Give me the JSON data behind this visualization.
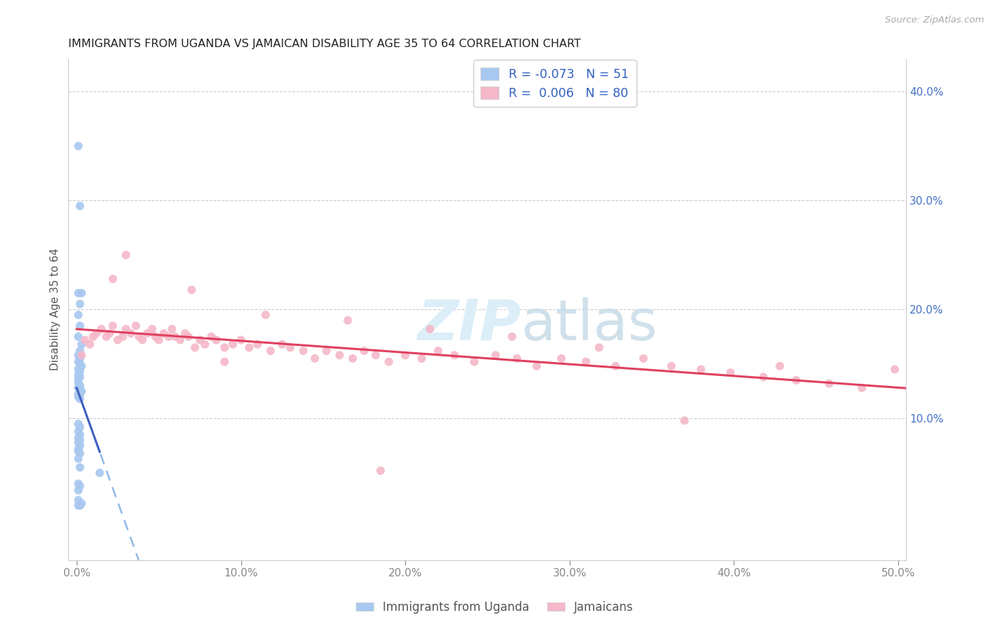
{
  "title": "IMMIGRANTS FROM UGANDA VS JAMAICAN DISABILITY AGE 35 TO 64 CORRELATION CHART",
  "source": "Source: ZipAtlas.com",
  "ylabel": "Disability Age 35 to 64",
  "xlim": [
    -0.005,
    0.505
  ],
  "ylim": [
    -0.03,
    0.43
  ],
  "xtick_vals": [
    0.0,
    0.1,
    0.2,
    0.3,
    0.4,
    0.5
  ],
  "xtick_labels": [
    "0.0%",
    "10.0%",
    "20.0%",
    "30.0%",
    "40.0%",
    "50.0%"
  ],
  "ytick_vals": [
    0.1,
    0.2,
    0.3,
    0.4
  ],
  "ytick_labels": [
    "10.0%",
    "20.0%",
    "30.0%",
    "40.0%"
  ],
  "R_uganda": -0.073,
  "N_uganda": 51,
  "R_jamaican": 0.006,
  "N_jamaican": 80,
  "color_uganda": "#a8c8f0",
  "color_jamaican": "#f4b8c8",
  "line_color_uganda_solid": "#4060c0",
  "line_color_uganda_dash": "#90b8e8",
  "line_color_jamaican": "#e04060",
  "watermark_color": "#dceef8",
  "uganda_x": [
    0.001,
    0.002,
    0.001,
    0.003,
    0.002,
    0.001,
    0.002,
    0.001,
    0.003,
    0.002,
    0.001,
    0.002,
    0.001,
    0.002,
    0.003,
    0.001,
    0.002,
    0.001,
    0.002,
    0.001,
    0.001,
    0.002,
    0.001,
    0.002,
    0.001,
    0.003,
    0.001,
    0.002,
    0.001,
    0.002,
    0.001,
    0.002,
    0.001,
    0.002,
    0.001,
    0.002,
    0.001,
    0.002,
    0.001,
    0.001,
    0.002,
    0.001,
    0.002,
    0.014,
    0.001,
    0.002,
    0.001,
    0.003,
    0.001,
    0.002,
    0.001
  ],
  "uganda_y": [
    0.35,
    0.295,
    0.215,
    0.215,
    0.205,
    0.195,
    0.185,
    0.175,
    0.168,
    0.162,
    0.158,
    0.155,
    0.152,
    0.15,
    0.148,
    0.145,
    0.143,
    0.14,
    0.138,
    0.136,
    0.133,
    0.13,
    0.128,
    0.125,
    0.122,
    0.125,
    0.128,
    0.122,
    0.12,
    0.118,
    0.095,
    0.092,
    0.088,
    0.085,
    0.082,
    0.08,
    0.078,
    0.075,
    0.072,
    0.07,
    0.068,
    0.063,
    0.055,
    0.05,
    0.025,
    0.02,
    0.02,
    0.022,
    0.034,
    0.038,
    0.04
  ],
  "jamaican_x": [
    0.003,
    0.005,
    0.008,
    0.01,
    0.012,
    0.015,
    0.018,
    0.02,
    0.022,
    0.025,
    0.028,
    0.03,
    0.033,
    0.036,
    0.038,
    0.04,
    0.043,
    0.046,
    0.048,
    0.05,
    0.053,
    0.056,
    0.058,
    0.06,
    0.063,
    0.066,
    0.068,
    0.072,
    0.075,
    0.078,
    0.082,
    0.085,
    0.09,
    0.095,
    0.1,
    0.105,
    0.11,
    0.118,
    0.125,
    0.13,
    0.138,
    0.145,
    0.152,
    0.16,
    0.168,
    0.175,
    0.182,
    0.19,
    0.2,
    0.21,
    0.22,
    0.23,
    0.242,
    0.255,
    0.268,
    0.28,
    0.295,
    0.31,
    0.328,
    0.345,
    0.362,
    0.38,
    0.398,
    0.418,
    0.438,
    0.458,
    0.478,
    0.498,
    0.03,
    0.07,
    0.115,
    0.165,
    0.215,
    0.265,
    0.318,
    0.37,
    0.428,
    0.022,
    0.09,
    0.185
  ],
  "jamaican_y": [
    0.158,
    0.172,
    0.168,
    0.175,
    0.178,
    0.182,
    0.175,
    0.178,
    0.185,
    0.172,
    0.175,
    0.182,
    0.178,
    0.185,
    0.175,
    0.172,
    0.178,
    0.182,
    0.175,
    0.172,
    0.178,
    0.175,
    0.182,
    0.175,
    0.172,
    0.178,
    0.175,
    0.165,
    0.172,
    0.168,
    0.175,
    0.172,
    0.165,
    0.168,
    0.172,
    0.165,
    0.168,
    0.162,
    0.168,
    0.165,
    0.162,
    0.155,
    0.162,
    0.158,
    0.155,
    0.162,
    0.158,
    0.152,
    0.158,
    0.155,
    0.162,
    0.158,
    0.152,
    0.158,
    0.155,
    0.148,
    0.155,
    0.152,
    0.148,
    0.155,
    0.148,
    0.145,
    0.142,
    0.138,
    0.135,
    0.132,
    0.128,
    0.145,
    0.25,
    0.218,
    0.195,
    0.19,
    0.182,
    0.175,
    0.165,
    0.098,
    0.148,
    0.228,
    0.152,
    0.052
  ],
  "uganda_line_x_start": 0.0,
  "uganda_line_x_solid_end": 0.014,
  "uganda_line_x_dash_end": 0.505,
  "jamaican_line_x_start": 0.0,
  "jamaican_line_x_end": 0.505
}
